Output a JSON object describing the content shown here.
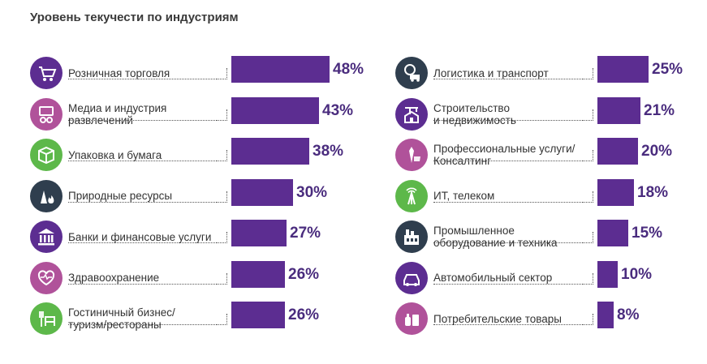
{
  "title": "Уровень текучести по индустриям",
  "colors": {
    "bar": "#5c2d91",
    "percent": "#4a2c7e"
  },
  "chart_data": {
    "type": "bar",
    "title": "Уровень текучести по индустриям",
    "unit": "%",
    "xlim": [
      0,
      48
    ],
    "groups": [
      {
        "name": "left",
        "categories": [
          "Розничная торговля",
          "Медиа и индустрия\nразвлечений",
          "Упаковка и бумага",
          "Природные ресурсы",
          "Банки и финансовые услуги",
          "Здравоохранение",
          "Гостиничный бизнес/\nтуризм/рестораны"
        ],
        "values": [
          48,
          43,
          38,
          30,
          27,
          26,
          26
        ],
        "labels": [
          "48%",
          "43%",
          "38%",
          "30%",
          "27%",
          "26%",
          "26%"
        ],
        "icons": [
          "shopping-cart-icon",
          "media-icon",
          "package-icon",
          "natural-resources-icon",
          "bank-icon",
          "healthcare-icon",
          "hospitality-icon"
        ],
        "icon_colors": [
          "#5c2d91",
          "#b0529a",
          "#5db84a",
          "#2f3e4e",
          "#5c2d91",
          "#b0529a",
          "#5db84a"
        ]
      },
      {
        "name": "right",
        "categories": [
          "Логистика и транспорт",
          "Строительство\nи недвижимость",
          "Профессиональные услуги/\nКонсалтинг",
          "ИТ, телеком",
          "Промышленное\nоборудование и техника",
          "Автомобильный сектор",
          "Потребительские товары"
        ],
        "values": [
          25,
          21,
          20,
          18,
          15,
          10,
          8
        ],
        "labels": [
          "25%",
          "21%",
          "20%",
          "18%",
          "15%",
          "10%",
          "8%"
        ],
        "icons": [
          "logistics-icon",
          "construction-icon",
          "consulting-icon",
          "telecom-icon",
          "industrial-icon",
          "car-icon",
          "consumer-goods-icon"
        ],
        "icon_colors": [
          "#2f3e4e",
          "#5c2d91",
          "#b0529a",
          "#5db84a",
          "#2f3e4e",
          "#5c2d91",
          "#b0529a"
        ]
      }
    ]
  }
}
